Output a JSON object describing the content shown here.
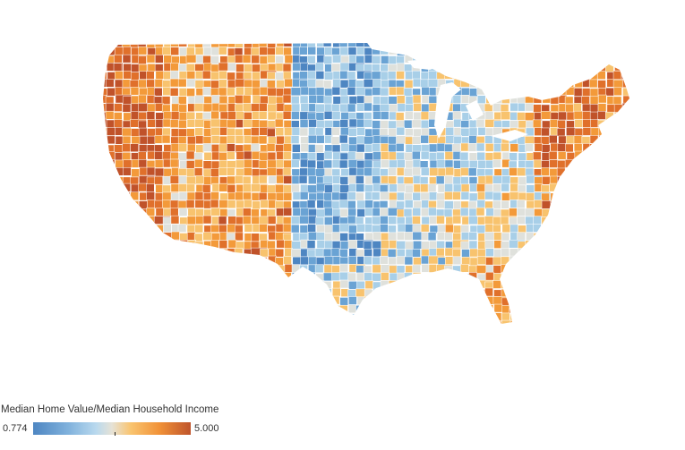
{
  "legend": {
    "title": "Median Home Value/Median Household Income",
    "min_label": "0.774",
    "max_label": "5.000",
    "min_value": 0.774,
    "max_value": 5.0,
    "tick_value": 2.96
  },
  "colors": {
    "scale": [
      "#4e86c2",
      "#6aa3d4",
      "#a8cfe8",
      "#dfe1dc",
      "#f8c36e",
      "#f39a3a",
      "#e0702b",
      "#c0522a"
    ],
    "background": "#ffffff",
    "border": "#ffffff"
  },
  "map": {
    "region": "contiguous-us-counties",
    "metric_palette": "blue-orange-diverging"
  }
}
